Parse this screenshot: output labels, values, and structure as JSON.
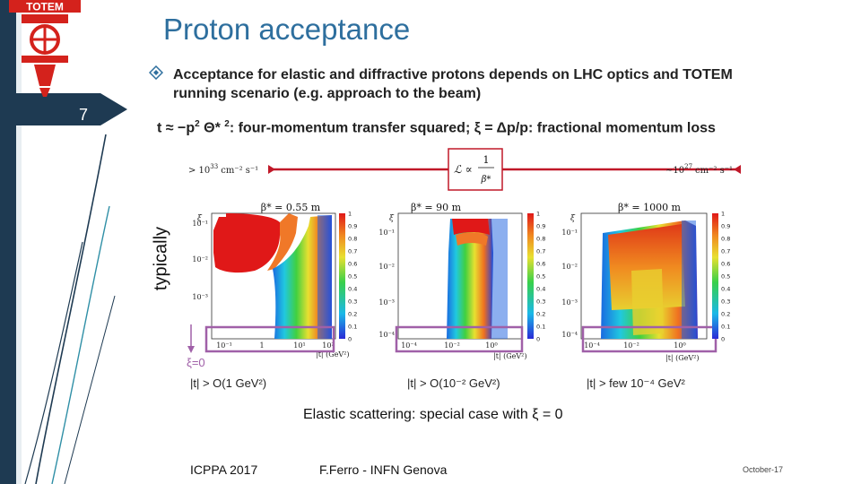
{
  "logo": {
    "text": "TOTEM",
    "icon": "totem-logo-icon",
    "color": "#d4221c"
  },
  "slide_number": "7",
  "title": "Proton acceptance",
  "bullet": {
    "icon": "diamond-bullet-icon",
    "text": "Acceptance for elastic and diffractive protons depends on LHC optics and TOTEM running scenario (e.g. approach to the beam)"
  },
  "formula": {
    "part1": "t ≈ −p",
    "sup1": "2",
    "part2": " Θ* ",
    "sup2": "2",
    "part3": ": four-momentum transfer squared; ξ = Δp/p: fractional momentum loss"
  },
  "side_label": "typically",
  "chart_data": {
    "type": "heatmap",
    "luminosity": {
      "high_label": "> 10",
      "high_exp": "33",
      "high_unit": "cm⁻² s⁻¹",
      "low_label": "~10",
      "low_exp": "27",
      "low_unit": "cm⁻² s⁻¹",
      "formula_lhs": "ℒ ∝",
      "formula_num": "1",
      "formula_den": "β*"
    },
    "color_scale": {
      "min": 0,
      "max": 1,
      "ticks": [
        "1",
        "0.9",
        "0.8",
        "0.7",
        "0.6",
        "0.5",
        "0.4",
        "0.3",
        "0.2",
        "0.1",
        "0"
      ]
    },
    "panels": [
      {
        "beta_label": "β* = 0.55 m",
        "y_ticks": [
          "10⁻¹",
          "10⁻²",
          "10⁻³"
        ],
        "x_ticks": [
          "10⁻¹",
          "1",
          "10¹",
          "10²"
        ],
        "xlabel": "|t|  (GeV²)",
        "ylabel": "ξ",
        "xi_zero_label": "ξ=0",
        "case_label": "|t| > O(1 GeV²)"
      },
      {
        "beta_label": "β* = 90 m",
        "y_ticks": [
          "10⁻¹",
          "10⁻²",
          "10⁻³",
          "10⁻⁴"
        ],
        "x_ticks": [
          "10⁻⁴",
          "10⁻²",
          "10⁰"
        ],
        "xlabel": "|t|  (GeV²)",
        "ylabel": "ξ",
        "case_label": "|t| > O(10⁻² GeV²)"
      },
      {
        "beta_label": "β* = 1000 m",
        "y_ticks": [
          "10⁻¹",
          "10⁻²",
          "10⁻³",
          "10⁻⁴"
        ],
        "x_ticks": [
          "10⁻⁴",
          "10⁻²",
          "10⁰"
        ],
        "xlabel": "|t|  (GeV²)",
        "ylabel": "ξ",
        "case_label": "|t| > few 10⁻⁴ GeV²"
      }
    ]
  },
  "caption": "Elastic scattering: special case with ξ = 0",
  "footer": {
    "conference": "ICPPA 2017",
    "author": "F.Ferro - INFN Genova",
    "date": "October-17"
  },
  "colors": {
    "title": "#2e6f9e",
    "sidebar_dark": "#1e3a52",
    "sidebar_teal": "#2f8fa6",
    "highlight_box": "#a060a8",
    "luminosity_arrow": "#c01828"
  }
}
